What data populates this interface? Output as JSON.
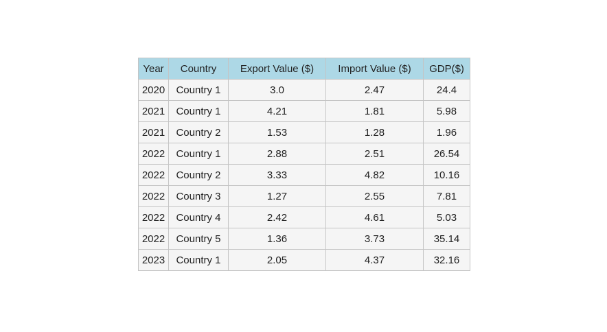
{
  "chart_data": {
    "type": "table",
    "columns": [
      "Year",
      "Country",
      "Export Value ($)",
      "Import Value ($)",
      "GDP($)"
    ],
    "rows": [
      [
        "2020",
        "Country 1",
        "3.0",
        "2.47",
        "24.4"
      ],
      [
        "2021",
        "Country 1",
        "4.21",
        "1.81",
        "5.98"
      ],
      [
        "2021",
        "Country 2",
        "1.53",
        "1.28",
        "1.96"
      ],
      [
        "2022",
        "Country 1",
        "2.88",
        "2.51",
        "26.54"
      ],
      [
        "2022",
        "Country 2",
        "3.33",
        "4.82",
        "10.16"
      ],
      [
        "2022",
        "Country 3",
        "1.27",
        "2.55",
        "7.81"
      ],
      [
        "2022",
        "Country 4",
        "2.42",
        "4.61",
        "5.03"
      ],
      [
        "2022",
        "Country 5",
        "1.36",
        "3.73",
        "35.14"
      ],
      [
        "2023",
        "Country 1",
        "2.05",
        "4.37",
        "32.16"
      ]
    ],
    "colors": {
      "header_background": "#add8e6",
      "cell_background": "#f5f5f5",
      "border": "#c4c4c4"
    }
  }
}
